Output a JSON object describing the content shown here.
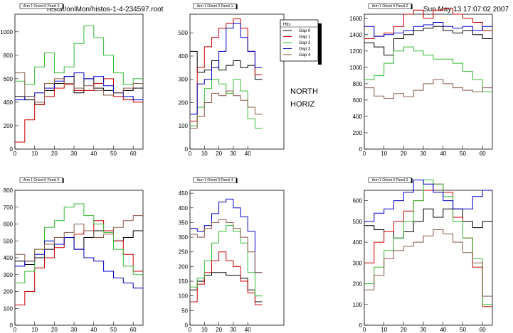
{
  "header": {
    "file": "result/onlMon/histos-1-4-234597.root",
    "date": "Sun May 13 17:07:02 2007"
  },
  "annotations": [
    "NORTH",
    "HORIZ"
  ],
  "legend": {
    "title": "Hits",
    "entries": [
      "Gap 0",
      "Gap 1",
      "Gap 2",
      "Gap 3",
      "Gap 4"
    ],
    "colors": [
      "#000000",
      "#cc0000",
      "#33bb33",
      "#0000cc",
      "#8b5a4a"
    ]
  },
  "chart_data": [
    {
      "type": "line",
      "step": true,
      "title": "Arm 1 Orient 0 Panel 0",
      "xlim": [
        0,
        65
      ],
      "ylim": [
        0,
        1150
      ],
      "xticks": [
        0,
        10,
        20,
        30,
        40,
        50,
        60
      ],
      "yticks": [
        0,
        200,
        400,
        600,
        800,
        1000
      ],
      "series": [
        {
          "name": "Gap 0",
          "x": [
            0,
            5,
            10,
            15,
            20,
            25,
            30,
            35,
            40,
            45,
            50,
            55,
            60
          ],
          "y": [
            450,
            420,
            380,
            500,
            560,
            620,
            480,
            600,
            520,
            500,
            480,
            500,
            520
          ]
        },
        {
          "name": "Gap 1",
          "x": [
            0,
            5,
            10,
            15,
            20,
            25,
            30,
            35,
            40,
            45,
            50,
            55,
            60
          ],
          "y": [
            60,
            250,
            380,
            450,
            520,
            550,
            500,
            500,
            560,
            600,
            450,
            420,
            400
          ]
        },
        {
          "name": "Gap 2",
          "x": [
            0,
            5,
            10,
            15,
            20,
            25,
            30,
            35,
            40,
            45,
            50,
            55,
            60
          ],
          "y": [
            580,
            550,
            700,
            820,
            650,
            700,
            900,
            1050,
            950,
            800,
            650,
            550,
            600
          ]
        },
        {
          "name": "Gap 3",
          "x": [
            0,
            5,
            10,
            15,
            20,
            25,
            30,
            35,
            40,
            45,
            50,
            55,
            60
          ],
          "y": [
            420,
            450,
            480,
            520,
            580,
            620,
            650,
            600,
            620,
            540,
            480,
            450,
            420
          ]
        },
        {
          "name": "Gap 4",
          "x": [
            0,
            5,
            10,
            15,
            20,
            25,
            30,
            35,
            40,
            45,
            50,
            55,
            60
          ],
          "y": [
            650,
            450,
            400,
            560,
            600,
            560,
            520,
            540,
            500,
            460,
            480,
            520,
            560
          ]
        }
      ]
    },
    {
      "type": "line",
      "step": true,
      "title": "Arm 1 Orient 0 Panel 1",
      "xlim": [
        0,
        65
      ],
      "ylim": [
        0,
        580
      ],
      "xticks": [
        0,
        10,
        20,
        30,
        40
      ],
      "yticks": [
        0,
        100,
        200,
        300,
        400,
        500
      ],
      "series": [
        {
          "name": "Gap 0",
          "x": [
            0,
            5,
            10,
            15,
            20,
            25,
            30,
            35,
            40,
            45
          ],
          "y": [
            420,
            330,
            340,
            380,
            340,
            360,
            380,
            350,
            360,
            300
          ]
        },
        {
          "name": "Gap 1",
          "x": [
            0,
            5,
            10,
            15,
            20,
            25,
            30,
            35,
            40,
            45
          ],
          "y": [
            120,
            350,
            440,
            480,
            520,
            540,
            560,
            520,
            420,
            320
          ]
        },
        {
          "name": "Gap 2",
          "x": [
            0,
            5,
            10,
            15,
            20,
            25,
            30,
            35,
            40,
            45
          ],
          "y": [
            100,
            180,
            260,
            300,
            280,
            240,
            300,
            250,
            130,
            90
          ]
        },
        {
          "name": "Gap 3",
          "x": [
            0,
            5,
            10,
            15,
            20,
            25,
            30,
            35,
            40,
            45
          ],
          "y": [
            150,
            280,
            300,
            350,
            420,
            520,
            540,
            480,
            420,
            350
          ]
        },
        {
          "name": "Gap 4",
          "x": [
            0,
            5,
            10,
            15,
            20,
            25,
            30,
            35,
            40,
            45
          ],
          "y": [
            90,
            140,
            200,
            240,
            230,
            250,
            230,
            210,
            180,
            150
          ]
        }
      ]
    },
    {
      "type": "line",
      "step": true,
      "title": "Arm 1 Orient 0 Panel 2",
      "xlim": [
        0,
        65
      ],
      "ylim": [
        0,
        1650
      ],
      "xticks": [
        0,
        10,
        20,
        30,
        40,
        50,
        60
      ],
      "yticks": [
        0,
        200,
        400,
        600,
        800,
        1000,
        1200,
        1400,
        1600
      ],
      "series": [
        {
          "name": "Gap 0",
          "x": [
            0,
            5,
            10,
            15,
            20,
            25,
            30,
            35,
            40,
            45,
            50,
            55,
            60
          ],
          "y": [
            1300,
            1250,
            1150,
            1350,
            1400,
            1450,
            1480,
            1500,
            1450,
            1420,
            1450,
            1400,
            1350
          ]
        },
        {
          "name": "Gap 1",
          "x": [
            0,
            5,
            10,
            15,
            20,
            25,
            30,
            35,
            40,
            45,
            50,
            55,
            60
          ],
          "y": [
            1350,
            1380,
            1420,
            1500,
            1650,
            1700,
            1600,
            1700,
            1720,
            1650,
            1600,
            1550,
            1450
          ]
        },
        {
          "name": "Gap 2",
          "x": [
            0,
            5,
            10,
            15,
            20,
            25,
            30,
            35,
            40,
            45,
            50,
            55,
            60
          ],
          "y": [
            850,
            900,
            1050,
            1200,
            1250,
            1200,
            1150,
            1100,
            1100,
            1050,
            950,
            850,
            700
          ]
        },
        {
          "name": "Gap 3",
          "x": [
            0,
            5,
            10,
            15,
            20,
            25,
            30,
            35,
            40,
            45,
            50,
            55,
            60
          ],
          "y": [
            1500,
            1380,
            1400,
            1420,
            1450,
            1500,
            1520,
            1550,
            1500,
            1480,
            1500,
            1450,
            1500
          ]
        },
        {
          "name": "Gap 4",
          "x": [
            0,
            5,
            10,
            15,
            20,
            25,
            30,
            35,
            40,
            45,
            50,
            55,
            60
          ],
          "y": [
            750,
            650,
            620,
            680,
            640,
            720,
            800,
            850,
            800,
            750,
            720,
            700,
            750
          ]
        }
      ]
    },
    {
      "type": "line",
      "step": true,
      "title": "Arm 1 Orient 0 Panel 5",
      "xlim": [
        0,
        65
      ],
      "ylim": [
        0,
        800
      ],
      "xticks": [
        0,
        10,
        20,
        30,
        40,
        50,
        60
      ],
      "yticks": [
        0,
        100,
        200,
        300,
        400,
        500,
        600,
        700,
        800
      ],
      "series": [
        {
          "name": "Gap 0",
          "x": [
            0,
            5,
            10,
            15,
            20,
            25,
            30,
            35,
            40,
            45,
            50,
            55,
            60
          ],
          "y": [
            380,
            360,
            400,
            450,
            480,
            520,
            450,
            520,
            560,
            560,
            500,
            520,
            560
          ]
        },
        {
          "name": "Gap 1",
          "x": [
            0,
            5,
            10,
            15,
            20,
            25,
            30,
            35,
            40,
            45,
            50,
            55,
            60
          ],
          "y": [
            120,
            200,
            340,
            400,
            460,
            520,
            540,
            560,
            620,
            560,
            500,
            420,
            320
          ]
        },
        {
          "name": "Gap 2",
          "x": [
            0,
            5,
            10,
            15,
            20,
            25,
            30,
            35,
            40,
            45,
            50,
            55,
            60
          ],
          "y": [
            250,
            320,
            450,
            580,
            620,
            700,
            720,
            650,
            600,
            550,
            450,
            350,
            300
          ]
        },
        {
          "name": "Gap 3",
          "x": [
            0,
            5,
            10,
            15,
            20,
            25,
            30,
            35,
            40,
            45,
            50,
            55,
            60
          ],
          "y": [
            350,
            380,
            420,
            500,
            480,
            520,
            450,
            400,
            380,
            320,
            280,
            250,
            220
          ]
        },
        {
          "name": "Gap 4",
          "x": [
            0,
            5,
            10,
            15,
            20,
            25,
            30,
            35,
            40,
            45,
            50,
            55,
            60
          ],
          "y": [
            420,
            380,
            450,
            480,
            520,
            550,
            600,
            560,
            520,
            540,
            580,
            620,
            650
          ]
        }
      ]
    },
    {
      "type": "line",
      "step": true,
      "title": "Arm 1 Orient 0 Panel 4",
      "xlim": [
        0,
        65
      ],
      "ylim": [
        0,
        460
      ],
      "xticks": [
        0,
        10,
        20,
        30,
        40
      ],
      "yticks": [
        0,
        50,
        100,
        150,
        200,
        250,
        300,
        350,
        400,
        450
      ],
      "series": [
        {
          "name": "Gap 0",
          "x": [
            0,
            5,
            10,
            15,
            20,
            25,
            30,
            35,
            40,
            45
          ],
          "y": [
            120,
            150,
            170,
            180,
            180,
            170,
            170,
            160,
            120,
            80
          ]
        },
        {
          "name": "Gap 1",
          "x": [
            0,
            5,
            10,
            15,
            20,
            25,
            30,
            35,
            40,
            45
          ],
          "y": [
            80,
            140,
            180,
            220,
            250,
            220,
            200,
            150,
            110,
            70
          ]
        },
        {
          "name": "Gap 2",
          "x": [
            0,
            5,
            10,
            15,
            20,
            25,
            30,
            35,
            40,
            45
          ],
          "y": [
            130,
            160,
            220,
            280,
            320,
            340,
            320,
            280,
            180,
            100
          ]
        },
        {
          "name": "Gap 3",
          "x": [
            0,
            5,
            10,
            15,
            20,
            25,
            30,
            35,
            40,
            45
          ],
          "y": [
            330,
            320,
            340,
            380,
            420,
            430,
            400,
            370,
            320,
            180
          ]
        },
        {
          "name": "Gap 4",
          "x": [
            0,
            5,
            10,
            15,
            20,
            25,
            30,
            35,
            40,
            45
          ],
          "y": [
            310,
            300,
            330,
            350,
            360,
            350,
            330,
            300,
            250,
            180
          ]
        }
      ]
    },
    {
      "type": "line",
      "step": true,
      "title": "Arm 1 Orient 0 Panel 3",
      "xlim": [
        0,
        65
      ],
      "ylim": [
        0,
        650
      ],
      "xticks": [
        0,
        10,
        20,
        30,
        40,
        50,
        60
      ],
      "yticks": [
        0,
        100,
        200,
        300,
        400,
        500,
        600
      ],
      "series": [
        {
          "name": "Gap 0",
          "x": [
            0,
            5,
            10,
            15,
            20,
            25,
            30,
            35,
            40,
            45,
            50,
            55,
            60
          ],
          "y": [
            480,
            460,
            450,
            420,
            450,
            500,
            560,
            520,
            560,
            560,
            500,
            470,
            500
          ]
        },
        {
          "name": "Gap 1",
          "x": [
            0,
            5,
            10,
            15,
            20,
            25,
            30,
            35,
            40,
            45,
            50,
            55,
            60
          ],
          "y": [
            300,
            400,
            450,
            500,
            550,
            600,
            650,
            680,
            640,
            520,
            420,
            280,
            90
          ]
        },
        {
          "name": "Gap 2",
          "x": [
            0,
            5,
            10,
            15,
            20,
            25,
            30,
            35,
            40,
            45,
            50,
            55,
            60
          ],
          "y": [
            200,
            280,
            360,
            420,
            500,
            600,
            700,
            680,
            620,
            500,
            420,
            320,
            100
          ]
        },
        {
          "name": "Gap 3",
          "x": [
            0,
            5,
            10,
            15,
            20,
            25,
            30,
            35,
            40,
            45,
            50,
            55,
            60
          ],
          "y": [
            500,
            540,
            560,
            600,
            640,
            700,
            680,
            640,
            600,
            560,
            560,
            620,
            650
          ]
        },
        {
          "name": "Gap 4",
          "x": [
            0,
            5,
            10,
            15,
            20,
            25,
            30,
            35,
            40,
            45,
            50,
            55,
            60
          ],
          "y": [
            170,
            240,
            320,
            360,
            380,
            400,
            430,
            460,
            440,
            400,
            350,
            300,
            140
          ]
        }
      ]
    }
  ]
}
